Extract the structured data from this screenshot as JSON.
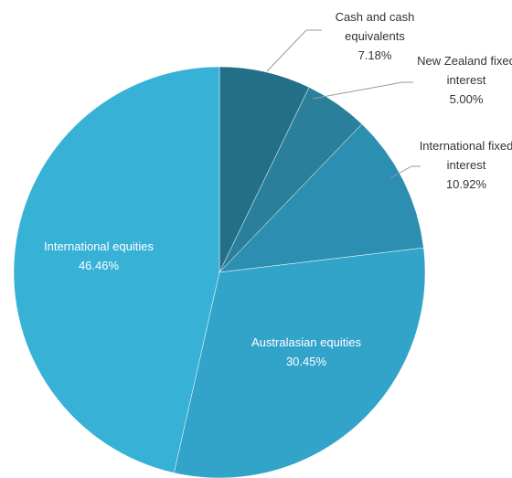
{
  "chart_data": {
    "type": "pie",
    "categories": [
      "Cash and cash equivalents",
      "New Zealand fixed interest",
      "International fixed interest",
      "Australasian equities",
      "International equities"
    ],
    "values": [
      7.18,
      5.0,
      10.92,
      30.45,
      46.46
    ],
    "value_labels": [
      "7.18%",
      "5.00%",
      "10.92%",
      "30.45%",
      "46.46%"
    ],
    "colors": [
      "#236f88",
      "#2a809b",
      "#2c8fb2",
      "#33a4c9",
      "#38b1d7"
    ]
  }
}
